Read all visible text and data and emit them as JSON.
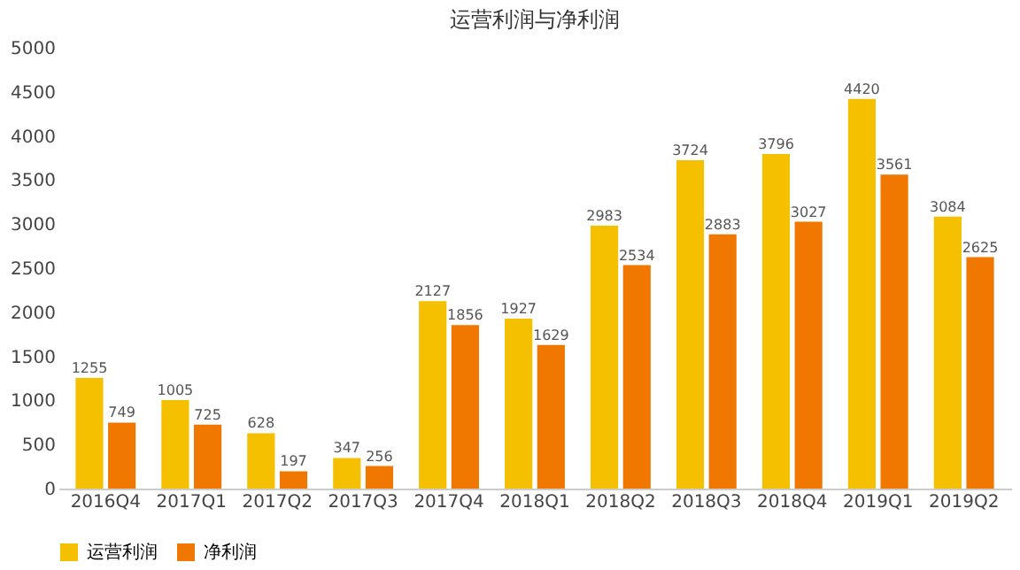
{
  "chart_data": {
    "type": "bar",
    "title": "运营利润与净利润",
    "categories": [
      "2016Q4",
      "2017Q1",
      "2017Q2",
      "2017Q3",
      "2017Q4",
      "2018Q1",
      "2018Q2",
      "2018Q3",
      "2018Q4",
      "2019Q1",
      "2019Q2"
    ],
    "series": [
      {
        "name": "运营利润",
        "color": "#f5c000",
        "values": [
          1255,
          1005,
          628,
          347,
          2127,
          1927,
          2983,
          3724,
          3796,
          4420,
          3084
        ]
      },
      {
        "name": "净利润",
        "color": "#f07800",
        "values": [
          749,
          725,
          197,
          256,
          1856,
          1629,
          2534,
          2883,
          3027,
          3561,
          2625
        ]
      }
    ],
    "ylim": [
      0,
      5000
    ],
    "yticks": [
      0,
      500,
      1000,
      1500,
      2000,
      2500,
      3000,
      3500,
      4000,
      4500,
      5000
    ],
    "grid": false,
    "legend": "bottom",
    "data_labels": true
  }
}
